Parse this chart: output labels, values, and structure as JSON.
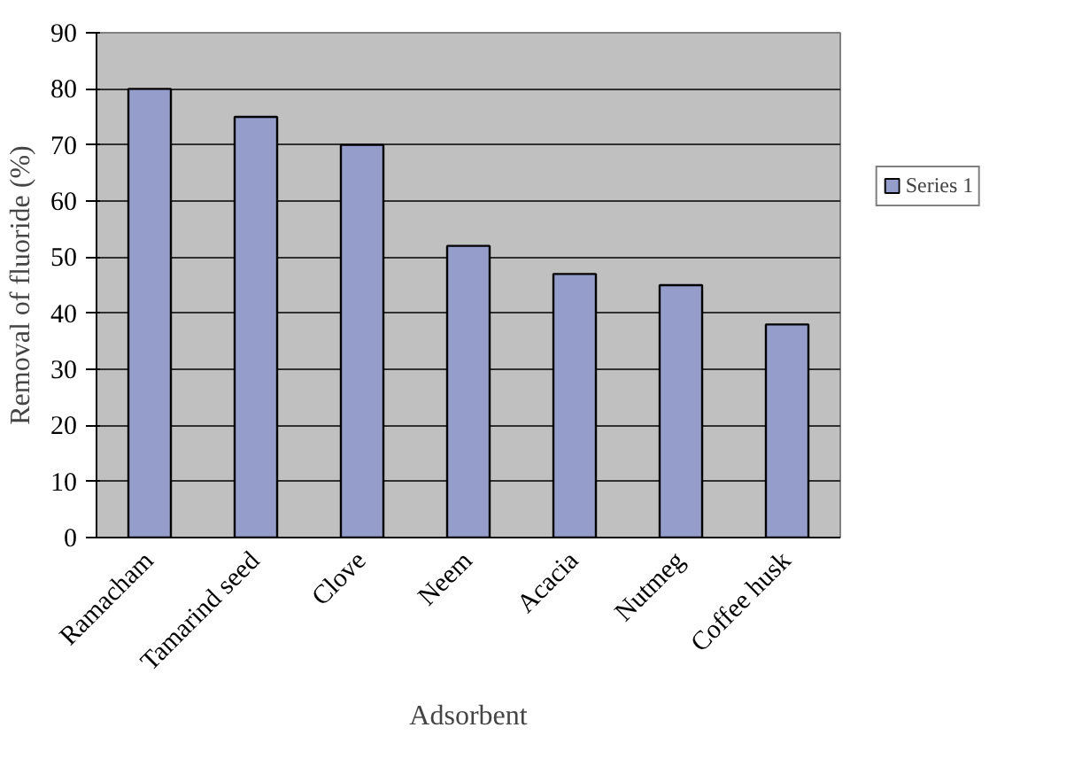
{
  "chart_data": {
    "type": "bar",
    "xlabel": "Adsorbent",
    "ylabel": "Removal of fluoride (%)",
    "categories": [
      "Ramacham",
      "Tamarind seed",
      "Clove",
      "Neem",
      "Acacia",
      "Nutmeg",
      "Coffee husk"
    ],
    "series": [
      {
        "name": "Series 1",
        "color": "#959dcb",
        "values": [
          80,
          75,
          70,
          52,
          47,
          45,
          38
        ]
      }
    ],
    "ylim": [
      0,
      90
    ],
    "yticks": [
      0,
      10,
      20,
      30,
      40,
      50,
      60,
      70,
      80,
      90
    ],
    "grid": "y",
    "legend": "right"
  }
}
